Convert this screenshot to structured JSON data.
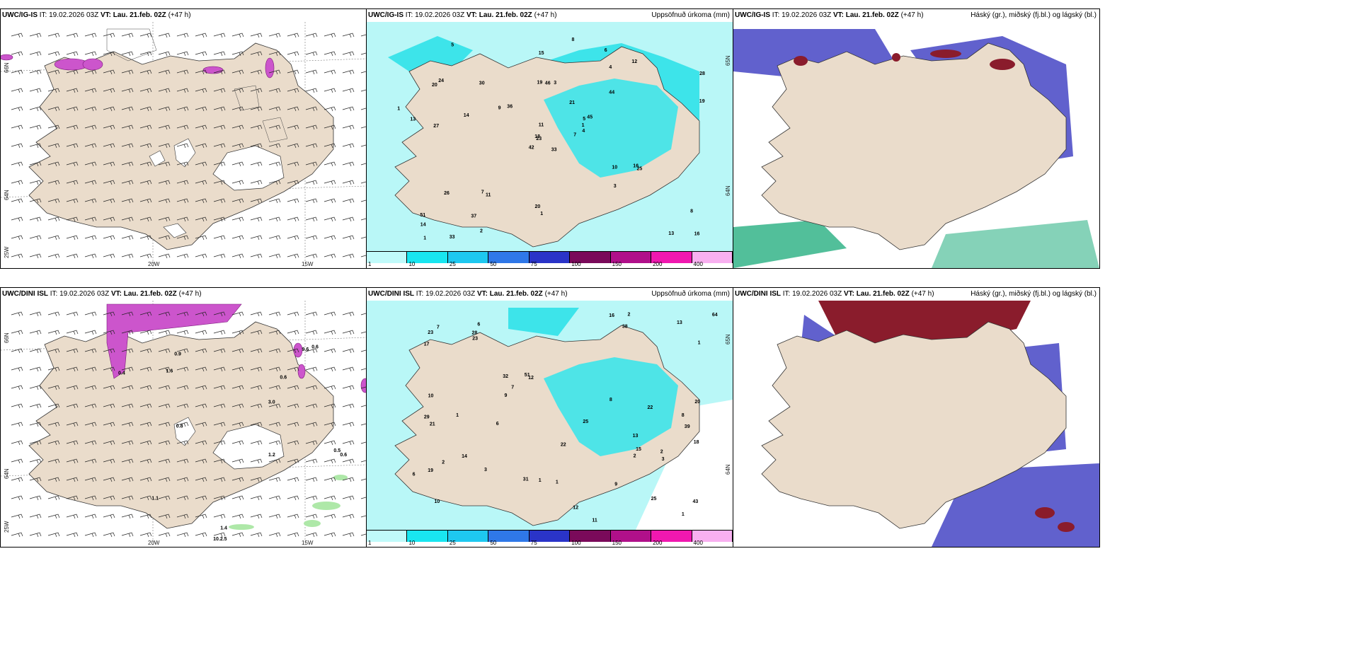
{
  "colors": {
    "land": "#eadccb",
    "coast": "#333333",
    "precip_cyan_light": "#b9f7f7",
    "precip_cyan": "#3de4ea",
    "ice_purple": "#c050c8",
    "cloud_high": "#8a1c2c",
    "cloud_mid": "#5050c8",
    "cloud_low": "#34b488"
  },
  "colorbar": {
    "ticks": [
      "1",
      "10",
      "25",
      "50",
      "75",
      "100",
      "150",
      "200",
      "400"
    ],
    "colors": [
      "#c0fafa",
      "#19e6f0",
      "#1ec8f0",
      "#2f78e8",
      "#2a34c8",
      "#7a0a5a",
      "#b0108a",
      "#f018b0",
      "#f8b0f0"
    ]
  },
  "panels": [
    {
      "id": "top-left",
      "model": "UWC/IG-IS",
      "it_label": "IT:",
      "it": "19.02.2026 03Z",
      "vt_label": "VT:",
      "vt": "Lau. 21.feb. 02Z",
      "lead": "(+47 h)",
      "title_right": "",
      "lon_labels": [
        "20W",
        "15W"
      ],
      "lat_labels": [
        "66N",
        "64N",
        "25W"
      ]
    },
    {
      "id": "top-mid",
      "model": "UWC/IG-IS",
      "it_label": "IT:",
      "it": "19.02.2026 03Z",
      "vt_label": "VT:",
      "vt": "Lau. 21.feb. 02Z",
      "lead": "(+47 h)",
      "title_right": "Uppsöfnuð úrkoma (mm)",
      "lat_labels": [
        "65N",
        "64N"
      ]
    },
    {
      "id": "top-right",
      "model": "UWC/IG-IS",
      "it_label": "IT:",
      "it": "19.02.2026 03Z",
      "vt_label": "VT:",
      "vt": "Lau. 21.feb. 02Z",
      "lead": "(+47 h)",
      "title_right": "Háský (gr.), miðský (fj.bl.) og lágský (bl.)"
    },
    {
      "id": "bottom-left",
      "model": "UWC/DINI ISL",
      "it_label": "IT:",
      "it": "19.02.2026 03Z",
      "vt_label": "VT:",
      "vt": "Lau. 21.feb. 02Z",
      "lead": "(+47 h)",
      "title_right": "",
      "lon_labels": [
        "20W",
        "15W"
      ],
      "lat_labels": [
        "66N",
        "64N",
        "25W"
      ]
    },
    {
      "id": "bottom-mid",
      "model": "UWC/DINI ISL",
      "it_label": "IT:",
      "it": "19.02.2026 03Z",
      "vt_label": "VT:",
      "vt": "Lau. 21.feb. 02Z",
      "lead": "(+47 h)",
      "title_right": "Uppsöfnuð úrkoma (mm)",
      "lat_labels": [
        "65N",
        "64N"
      ]
    },
    {
      "id": "bottom-right",
      "model": "UWC/DINI ISL",
      "it_label": "IT:",
      "it": "19.02.2026 03Z",
      "vt_label": "VT:",
      "vt": "Lau. 21.feb. 02Z",
      "lead": "(+47 h)",
      "title_right": "Háský (gr.), miðský (fj.bl.) og lágský (bl.)"
    }
  ],
  "top_mid_values": [
    "33",
    "20",
    "23",
    "51",
    "5",
    "11",
    "6",
    "3",
    "4",
    "7",
    "5",
    "16",
    "27",
    "28",
    "42",
    "44",
    "33",
    "19",
    "21",
    "26",
    "36",
    "14",
    "37",
    "46",
    "45",
    "25",
    "24",
    "15",
    "13",
    "10",
    "19",
    "18",
    "20",
    "11",
    "30",
    "12",
    "7",
    "13",
    "8",
    "16",
    "8",
    "9",
    "14",
    "3",
    "2",
    "1",
    "1",
    "1",
    "1",
    "4"
  ],
  "bottom_mid_values": [
    "13",
    "39",
    "10",
    "6",
    "12",
    "25",
    "19",
    "38",
    "32",
    "11",
    "17",
    "29",
    "23",
    "43",
    "31",
    "20",
    "22",
    "25",
    "51",
    "14",
    "64",
    "13",
    "9",
    "18",
    "16",
    "28",
    "15",
    "21",
    "23",
    "22",
    "12",
    "9",
    "7",
    "6",
    "8",
    "3",
    "2",
    "1",
    "1",
    "2",
    "1",
    "2",
    "1",
    "1",
    "2",
    "3",
    "6",
    "7",
    "8",
    "10"
  ],
  "bottom_left_values": [
    "0.4",
    "1.6",
    "3.0",
    "1.4",
    "9.6",
    "10.2.5",
    "1.2",
    "0.8",
    "0.6",
    "0.6",
    "0.5",
    "0.9",
    "0.6",
    "1.1"
  ]
}
